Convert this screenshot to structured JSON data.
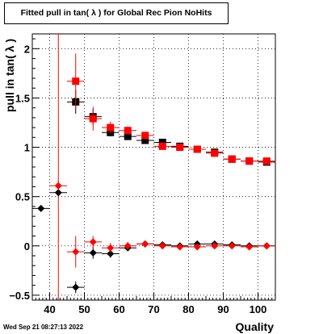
{
  "title": "Fitted pull in tan( λ ) for Global Rec Pion NoHits",
  "timestamp": "Wed Sep 21 08:27:13 2022",
  "colors": {
    "black_series": "#000000",
    "red_series": "#ff0000",
    "grid": "#000000"
  },
  "chart_data": {
    "type": "scatter",
    "title": "Fitted pull in tan( λ ) for Global Rec Pion NoHits",
    "xlabel": "Quality",
    "ylabel": "pull in tan( λ )",
    "xlim": [
      35,
      105
    ],
    "ylim": [
      -0.55,
      2.15
    ],
    "x_ticks": [
      40,
      50,
      60,
      70,
      80,
      90,
      100
    ],
    "y_ticks": [
      -0.5,
      0,
      0.5,
      1,
      1.5,
      2
    ],
    "x_tick_labels": [
      "40",
      "50",
      "60",
      "70",
      "80",
      "90",
      "100"
    ],
    "y_tick_labels": [
      "−0.5",
      "0",
      "0.5",
      "1",
      "1.5",
      "2"
    ],
    "grid": true,
    "reference_line_x": 42.5,
    "series": [
      {
        "marker": "square",
        "color": "#000000",
        "points": [
          {
            "x": 47.5,
            "y": 1.46,
            "yerr": 0.12
          },
          {
            "x": 52.5,
            "y": 1.31,
            "yerr": 0.08
          },
          {
            "x": 57.5,
            "y": 1.15,
            "yerr": 0.04
          },
          {
            "x": 62.5,
            "y": 1.11,
            "yerr": 0.03
          },
          {
            "x": 67.5,
            "y": 1.07,
            "yerr": 0.02
          },
          {
            "x": 72.5,
            "y": 1.05,
            "yerr": 0.02
          },
          {
            "x": 77.5,
            "y": 1.01,
            "yerr": 0.02
          },
          {
            "x": 82.5,
            "y": 0.98,
            "yerr": 0.02
          },
          {
            "x": 87.5,
            "y": 0.95,
            "yerr": 0.02
          },
          {
            "x": 92.5,
            "y": 0.88,
            "yerr": 0.02
          },
          {
            "x": 97.5,
            "y": 0.86,
            "yerr": 0.02
          },
          {
            "x": 102.5,
            "y": 0.85,
            "yerr": 0.02
          }
        ]
      },
      {
        "marker": "square",
        "color": "#ff0000",
        "points": [
          {
            "x": 47.5,
            "y": 1.67,
            "yerr": 0.28
          },
          {
            "x": 52.5,
            "y": 1.29,
            "yerr": 0.12
          },
          {
            "x": 57.5,
            "y": 1.2,
            "yerr": 0.06
          },
          {
            "x": 62.5,
            "y": 1.17,
            "yerr": 0.04
          },
          {
            "x": 67.5,
            "y": 1.12,
            "yerr": 0.03
          },
          {
            "x": 72.5,
            "y": 1.01,
            "yerr": 0.02
          },
          {
            "x": 77.5,
            "y": 1.0,
            "yerr": 0.02
          },
          {
            "x": 82.5,
            "y": 0.98,
            "yerr": 0.02
          },
          {
            "x": 87.5,
            "y": 0.94,
            "yerr": 0.02
          },
          {
            "x": 92.5,
            "y": 0.88,
            "yerr": 0.02
          },
          {
            "x": 97.5,
            "y": 0.86,
            "yerr": 0.02
          },
          {
            "x": 102.5,
            "y": 0.86,
            "yerr": 0.02
          }
        ]
      },
      {
        "marker": "diamond",
        "color": "#000000",
        "points": [
          {
            "x": 37.5,
            "y": 0.38,
            "yerr": 0.03
          },
          {
            "x": 42.5,
            "y": 0.54,
            "yerr": 0.03
          },
          {
            "x": 47.5,
            "y": -0.42,
            "yerr": 0.06
          },
          {
            "x": 52.5,
            "y": -0.07,
            "yerr": 0.06
          },
          {
            "x": 57.5,
            "y": -0.08,
            "yerr": 0.04
          },
          {
            "x": 62.5,
            "y": -0.02,
            "yerr": 0.03
          },
          {
            "x": 67.5,
            "y": 0.02,
            "yerr": 0.02
          },
          {
            "x": 72.5,
            "y": 0.01,
            "yerr": 0.02
          },
          {
            "x": 77.5,
            "y": 0.0,
            "yerr": 0.02
          },
          {
            "x": 82.5,
            "y": 0.02,
            "yerr": 0.02
          },
          {
            "x": 87.5,
            "y": 0.02,
            "yerr": 0.02
          },
          {
            "x": 92.5,
            "y": 0.01,
            "yerr": 0.02
          },
          {
            "x": 97.5,
            "y": 0.0,
            "yerr": 0.02
          },
          {
            "x": 102.5,
            "y": 0.0,
            "yerr": 0.02
          }
        ]
      },
      {
        "marker": "diamond",
        "color": "#ff0000",
        "points": [
          {
            "x": 42.5,
            "y": 0.61,
            "yerr": 0.05
          },
          {
            "x": 47.5,
            "y": -0.06,
            "yerr": 0.16
          },
          {
            "x": 52.5,
            "y": 0.04,
            "yerr": 0.06
          },
          {
            "x": 57.5,
            "y": -0.02,
            "yerr": 0.05
          },
          {
            "x": 62.5,
            "y": 0.0,
            "yerr": 0.04
          },
          {
            "x": 67.5,
            "y": 0.02,
            "yerr": 0.03
          },
          {
            "x": 72.5,
            "y": 0.0,
            "yerr": 0.02
          },
          {
            "x": 77.5,
            "y": -0.01,
            "yerr": 0.02
          },
          {
            "x": 82.5,
            "y": -0.01,
            "yerr": 0.02
          },
          {
            "x": 87.5,
            "y": 0.0,
            "yerr": 0.02
          },
          {
            "x": 92.5,
            "y": 0.0,
            "yerr": 0.02
          },
          {
            "x": 97.5,
            "y": -0.01,
            "yerr": 0.02
          },
          {
            "x": 102.5,
            "y": 0.0,
            "yerr": 0.02
          }
        ]
      }
    ]
  }
}
